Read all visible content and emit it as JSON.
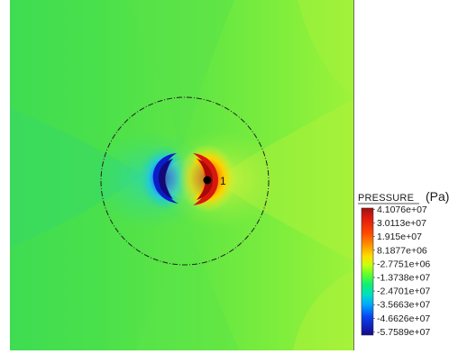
{
  "legend": {
    "title": "PRESSURE",
    "unit": "(Pa)",
    "ticks": [
      "4.1076e+07",
      "3.0113e+07",
      "1.915e+07",
      "8.1877e+06",
      "-2.7751e+06",
      "-1.3738e+07",
      "-2.4701e+07",
      "-3.5663e+07",
      "-4.6626e+07",
      "-5.7589e+07"
    ],
    "colors": [
      "#d7191c",
      "#ff2a00",
      "#ff7a00",
      "#ffd000",
      "#c8ff00",
      "#5cff2a",
      "#00e8a0",
      "#0096ff",
      "#0a2cf0",
      "#1a0a8a"
    ]
  },
  "marker": {
    "label": "1",
    "color": "#000000"
  },
  "colors": {
    "field_base": "#4fe24f",
    "field_light": "#8ef03e",
    "field_cyan": "#2ed89a",
    "high": "#d21a10",
    "low": "#1d2bd0"
  }
}
